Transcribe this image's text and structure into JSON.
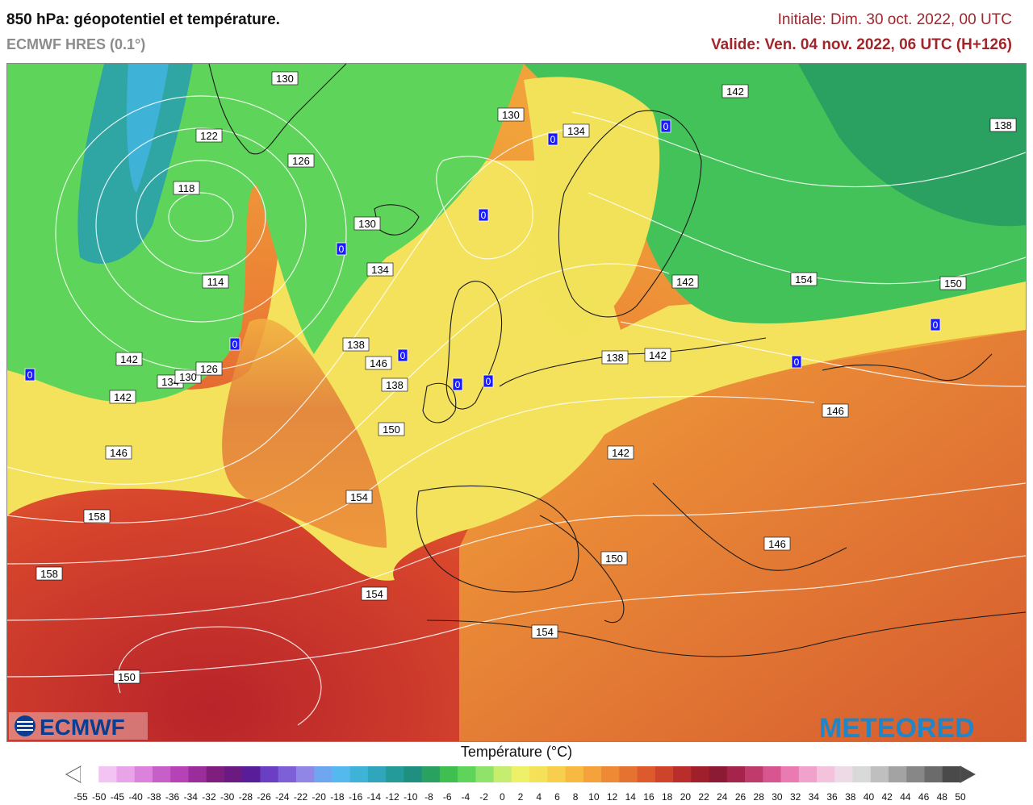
{
  "header": {
    "title": "850 hPa: géopotentiel et température.",
    "model": "ECMWF HRES (0.1°)",
    "initial": "Initiale: Dim. 30 oct. 2022, 00 UTC",
    "valid": "Valide: Ven. 04 nov. 2022, 06 UTC (H+126)"
  },
  "logos": {
    "ecmwf": "ECMWF",
    "meteored": "METEORED"
  },
  "colors": {
    "label_border": "#000000",
    "zero_label_bg": "#1a1aff",
    "contour": "#ffffff",
    "coast": "#1a1a1a"
  },
  "contour_labels": [
    "130",
    "130",
    "134",
    "142",
    "138",
    "122",
    "126",
    "118",
    "130",
    "134",
    "114",
    "138",
    "142",
    "146",
    "138",
    "134",
    "130",
    "126",
    "142",
    "146",
    "150",
    "146",
    "142",
    "138",
    "142",
    "142",
    "154",
    "150",
    "154",
    "158",
    "158",
    "146",
    "150",
    "154",
    "150",
    "154"
  ],
  "zero_labels": [
    "0",
    "0",
    "0",
    "0",
    "0",
    "0",
    "0",
    "0",
    "0",
    "0",
    "0"
  ],
  "colorbar": {
    "title": "Température (°C)",
    "ticks": [
      "-55",
      "-50",
      "-45",
      "-40",
      "-38",
      "-36",
      "-34",
      "-32",
      "-30",
      "-28",
      "-26",
      "-24",
      "-22",
      "-20",
      "-18",
      "-16",
      "-14",
      "-12",
      "-10",
      "-8",
      "-6",
      "-4",
      "-2",
      "0",
      "2",
      "4",
      "6",
      "8",
      "10",
      "12",
      "14",
      "16",
      "18",
      "20",
      "22",
      "24",
      "26",
      "28",
      "30",
      "32",
      "34",
      "36",
      "38",
      "40",
      "42",
      "44",
      "46",
      "48",
      "50"
    ],
    "colors": [
      "#ffffff",
      "#f3c4f3",
      "#e9a3e9",
      "#dc82dc",
      "#c85fc8",
      "#b543b5",
      "#9b2c9b",
      "#7e1e7e",
      "#6a1a80",
      "#5a1d9a",
      "#6a3fc4",
      "#7d5fd6",
      "#8f86e6",
      "#6fa6f0",
      "#55b9ef",
      "#3fb2d8",
      "#2fa6bb",
      "#259a9a",
      "#1f8f80",
      "#2aa160",
      "#3fbf4f",
      "#5fd45a",
      "#8fe26a",
      "#c6ee6e",
      "#eef06a",
      "#f5e05a",
      "#f7cf4c",
      "#f6b942",
      "#f3a23c",
      "#ee8a36",
      "#e67232",
      "#dc5a2e",
      "#cf432a",
      "#b92e2a",
      "#a01f2b",
      "#8d1a34",
      "#a5244c",
      "#c03a6c",
      "#d8568f",
      "#e97ab2",
      "#f1a2cc",
      "#f5c2de",
      "#eedae6",
      "#d9d9d9",
      "#bfbfbf",
      "#a3a3a3",
      "#878787",
      "#6b6b6b",
      "#4a4a4a"
    ]
  }
}
